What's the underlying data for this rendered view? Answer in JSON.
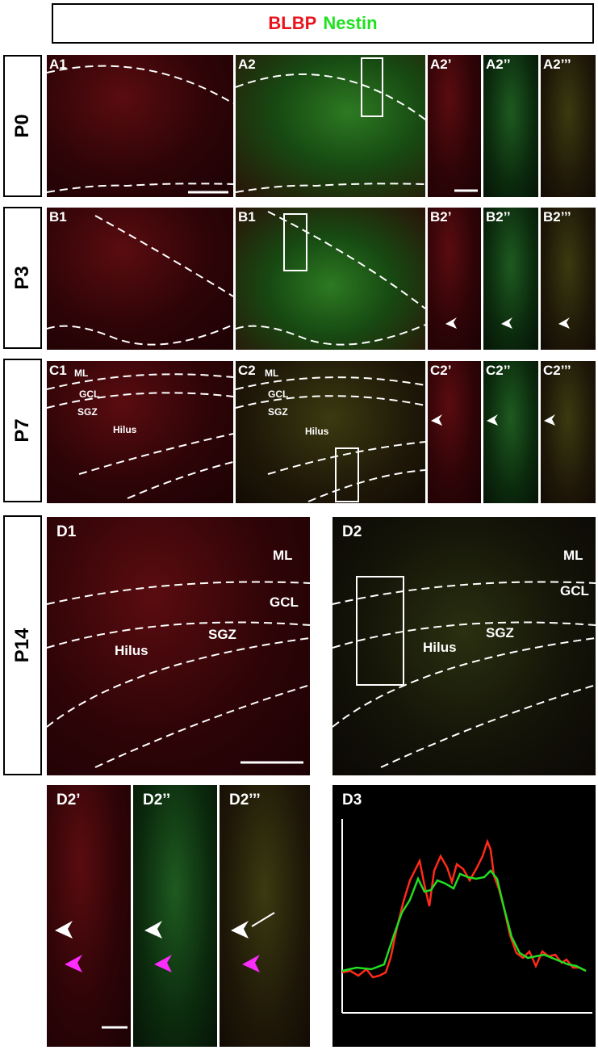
{
  "legend": {
    "red_text": "BLBP",
    "green_text": "Nestin",
    "red_color": "#e8141c",
    "green_color": "#22e022"
  },
  "rows": {
    "p0": "P0",
    "p3": "P3",
    "p7": "P7",
    "p14": "P14"
  },
  "panels": {
    "A1": "A1",
    "A2": "A2",
    "A2p": "A2’",
    "A2pp": "A2’’",
    "A2ppp": "A2’’’",
    "B1": "B1",
    "B1b": "B1",
    "B2p": "B2’",
    "B2pp": "B2’’",
    "B2ppp": "B2’’’",
    "C1": "C1",
    "C2": "C2",
    "C2p": "C2’",
    "C2pp": "C2’’",
    "C2ppp": "C2’’’",
    "D1": "D1",
    "D2": "D2",
    "D2p": "D2’",
    "D2pp": "D2’’",
    "D2ppp": "D2’’’",
    "D3": "D3"
  },
  "regions": {
    "ml": "ML",
    "gcl": "GCL",
    "sgz": "SGZ",
    "hilus": "Hilus"
  },
  "arrow_colors": {
    "white": "#ffffff",
    "magenta": "#ff2cff"
  },
  "chart_d3": {
    "series": [
      {
        "color": "#ff2a1a"
      },
      {
        "color": "#22dd22"
      }
    ]
  }
}
